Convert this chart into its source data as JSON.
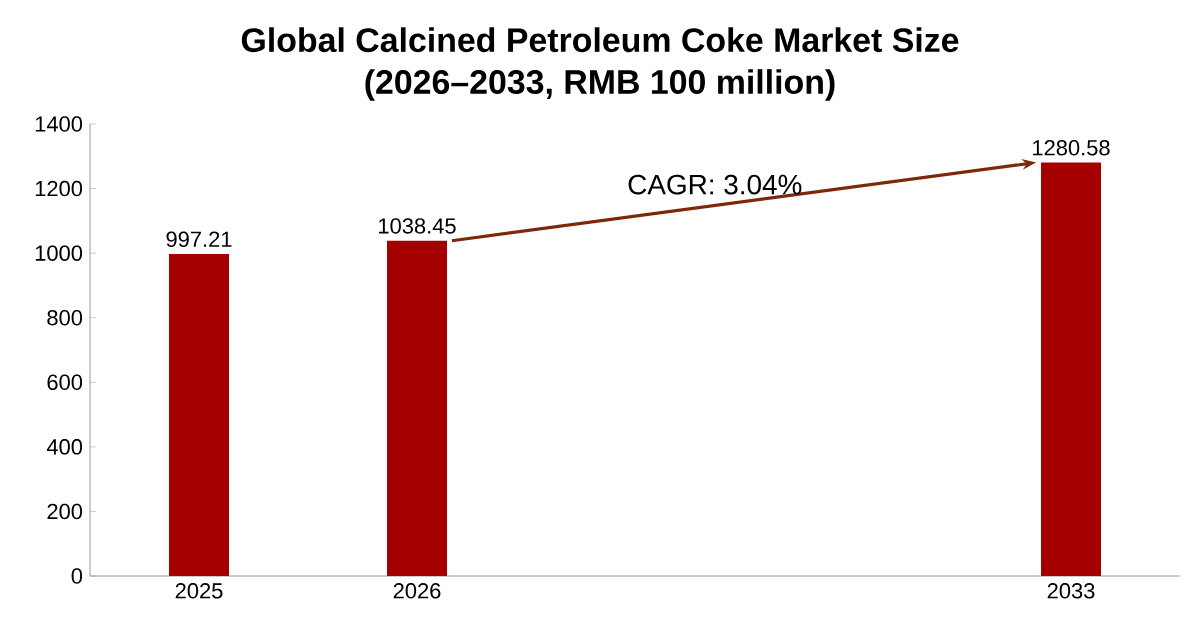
{
  "chart_data": {
    "type": "bar",
    "title": "Global Calcined Petroleum Coke Market Size\n(2026–2033, RMB 100 million)",
    "categories": [
      "2025",
      "2026",
      null,
      null,
      "2033"
    ],
    "values": [
      997.21,
      1038.45,
      null,
      null,
      1280.58
    ],
    "color": "#a50000",
    "ylim": [
      0,
      1400
    ],
    "yticks": [
      0,
      200,
      400,
      600,
      800,
      1000,
      1200,
      1400
    ],
    "data_labels": true,
    "grid": false,
    "annotations": [
      "CAGR: 3.04%"
    ]
  }
}
